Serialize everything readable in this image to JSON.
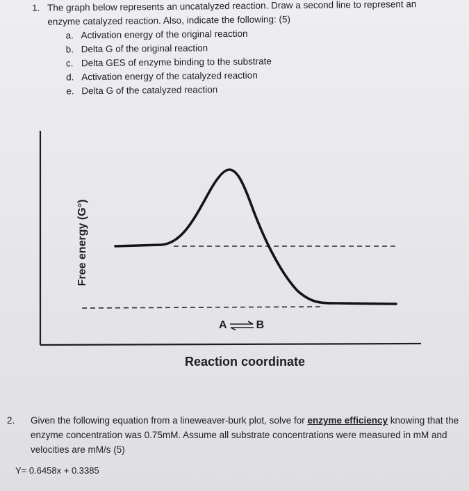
{
  "q1": {
    "number": "1.",
    "stem": "The graph below represents an uncatalyzed reaction. Draw a second line to represent an enzyme catalyzed reaction. Also, indicate the following: (5)",
    "items": [
      {
        "letter": "a.",
        "text": "Activation energy of the original reaction"
      },
      {
        "letter": "b.",
        "text": "Delta G of the original reaction"
      },
      {
        "letter": "c.",
        "text": "Delta GES of enzyme binding to the substrate"
      },
      {
        "letter": "d.",
        "text": "Activation energy of the catalyzed reaction"
      },
      {
        "letter": "e.",
        "text": "Delta G of the catalyzed reaction"
      }
    ]
  },
  "graph": {
    "ylabel": "Free energy (G°)",
    "xlabel": "Reaction coordinate",
    "reaction_left": "A",
    "reaction_right": "B"
  },
  "q2": {
    "number": "2.",
    "stem_before": "Given the following equation from a lineweaver-burk plot, solve for ",
    "emphasis": "enzyme efficiency",
    "stem_after": " knowing that the enzyme concentration was 0.75mM. Assume all substrate concentrations were measured in mM and velocities are mM/s (5)",
    "equation": "Y= 0.6458x + 0.3385"
  }
}
